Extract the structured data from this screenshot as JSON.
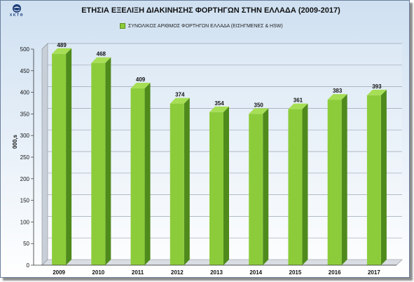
{
  "header": {
    "logo_text": "ΧΚΤΘ",
    "title": "ΕΤΗΣΙΑ ΕΞΕΛΙΞΗ ΔΙΑΚΙΝΗΣΗΣ ΦΟΡΤΗΓΩΝ ΣΤΗΝ ΕΛΛΑΔΑ (2009-2017)"
  },
  "colors": {
    "bar_front": "#8ccc3a",
    "bar_side": "#4f8a1c",
    "bar_top": "#a6de55",
    "gridline": "#9aa6b5"
  },
  "chart_data": {
    "type": "bar",
    "title": "ΕΤΗΣΙΑ ΕΞΕΛΙΞΗ ΔΙΑΚΙΝΗΣΗΣ ΦΟΡΤΗΓΩΝ ΣΤΗΝ ΕΛΛΑΔΑ (2009-2017)",
    "categories": [
      "2009",
      "2010",
      "2011",
      "2012",
      "2013",
      "2014",
      "2015",
      "2016",
      "2017"
    ],
    "series": [
      {
        "name": "ΣΥΝΟΛΙΚΟΣ ΑΡΙΘΜΟΣ ΦΟΡΤΗΓΩΝ ΕΛΛΑΔΑ (ΕΙΣΗΓΜΕΝΕΣ & HSW)",
        "values": [
          489,
          468,
          409,
          374,
          354,
          350,
          361,
          383,
          393
        ]
      }
    ],
    "xlabel": "",
    "ylabel": "000,s",
    "ylim": [
      0,
      500
    ],
    "yticks": [
      0,
      50,
      100,
      150,
      200,
      250,
      300,
      350,
      400,
      450,
      500
    ],
    "grid": true,
    "legend": "top-center",
    "data_labels": true
  }
}
